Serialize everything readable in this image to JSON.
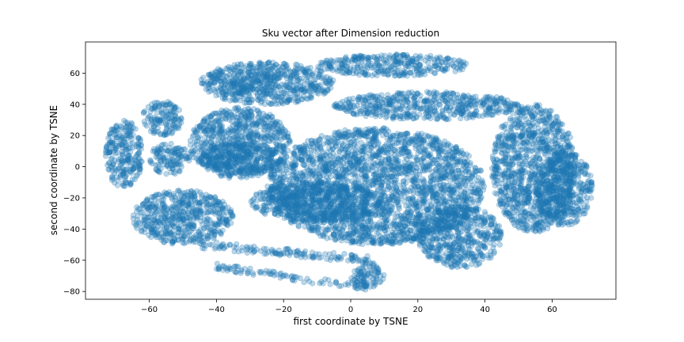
{
  "chart_data": {
    "type": "scatter",
    "title": "Sku vector after Dimension reduction",
    "xlabel": "first coordinate by TSNE",
    "ylabel": "second coordinate by TSNE",
    "xlim": [
      -79,
      79
    ],
    "ylim": [
      -85,
      80
    ],
    "xticks": [
      -60,
      -40,
      -20,
      0,
      20,
      40,
      60
    ],
    "yticks": [
      -80,
      -60,
      -40,
      -20,
      0,
      20,
      40,
      60
    ],
    "xtick_labels": [
      "−60",
      "−40",
      "−20",
      "0",
      "20",
      "40",
      "60"
    ],
    "ytick_labels": [
      "−80",
      "−60",
      "−40",
      "−20",
      "0",
      "20",
      "40",
      "60"
    ],
    "grid": false,
    "legend": null,
    "series": [
      {
        "color": "#1f77b4",
        "alpha": 0.3,
        "approx_point_count": 9000,
        "regions": [
          {
            "shape": "arc",
            "cx": 10,
            "cy": 5,
            "rx": 62,
            "ry": 64,
            "a0": 120,
            "a1": 140,
            "width": 8
          },
          {
            "shape": "blob",
            "x": [
              -62,
              -50
            ],
            "y": [
              20,
              42
            ]
          },
          {
            "shape": "blob",
            "x": [
              -73,
              -62
            ],
            "y": [
              -14,
              30
            ]
          },
          {
            "shape": "blob",
            "x": [
              -45,
              -5
            ],
            "y": [
              40,
              67
            ]
          },
          {
            "shape": "blob",
            "x": [
              -10,
              35
            ],
            "y": [
              58,
              72
            ]
          },
          {
            "shape": "blob",
            "x": [
              -5,
              50
            ],
            "y": [
              30,
              48
            ]
          },
          {
            "shape": "blob",
            "x": [
              42,
              67
            ],
            "y": [
              -42,
              40
            ]
          },
          {
            "shape": "blob",
            "x": [
              55,
              72
            ],
            "y": [
              -38,
              10
            ]
          },
          {
            "shape": "blob",
            "x": [
              -48,
              -18
            ],
            "y": [
              -8,
              38
            ]
          },
          {
            "shape": "blob",
            "x": [
              -45,
              -20
            ],
            "y": [
              -5,
              15
            ]
          },
          {
            "shape": "blob",
            "x": [
              -25,
              40
            ],
            "y": [
              -50,
              25
            ]
          },
          {
            "shape": "blob",
            "x": [
              -60,
              -48
            ],
            "y": [
              -5,
              15
            ]
          },
          {
            "shape": "blob",
            "x": [
              20,
              45
            ],
            "y": [
              -65,
              -25
            ]
          },
          {
            "shape": "blob",
            "x": [
              -65,
              -35
            ],
            "y": [
              -50,
              -15
            ]
          },
          {
            "shape": "blob",
            "x": [
              -30,
              10
            ],
            "y": [
              -35,
              -10
            ]
          },
          {
            "shape": "band",
            "x": [
              -45,
              7
            ],
            "y0": -50,
            "y1": -60,
            "width": 5
          },
          {
            "shape": "band",
            "x": [
              -40,
              5
            ],
            "y0": -64,
            "y1": -78,
            "width": 4
          },
          {
            "shape": "blob",
            "x": [
              0,
              10
            ],
            "y": [
              -78,
              -62
            ]
          }
        ]
      }
    ]
  }
}
